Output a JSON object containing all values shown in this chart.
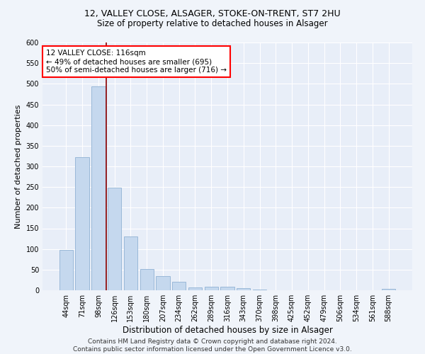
{
  "title_line1": "12, VALLEY CLOSE, ALSAGER, STOKE-ON-TRENT, ST7 2HU",
  "title_line2": "Size of property relative to detached houses in Alsager",
  "xlabel": "Distribution of detached houses by size in Alsager",
  "ylabel": "Number of detached properties",
  "categories": [
    "44sqm",
    "71sqm",
    "98sqm",
    "126sqm",
    "153sqm",
    "180sqm",
    "207sqm",
    "234sqm",
    "262sqm",
    "289sqm",
    "316sqm",
    "343sqm",
    "370sqm",
    "398sqm",
    "425sqm",
    "452sqm",
    "479sqm",
    "506sqm",
    "534sqm",
    "561sqm",
    "588sqm"
  ],
  "values": [
    97,
    323,
    494,
    249,
    131,
    51,
    35,
    20,
    7,
    9,
    9,
    5,
    1,
    0,
    0,
    0,
    0,
    0,
    0,
    0,
    4
  ],
  "bar_color": "#c5d8ee",
  "bar_edge_color": "#9ab8d8",
  "vline_color": "#8b0000",
  "annotation_text": "12 VALLEY CLOSE: 116sqm\n← 49% of detached houses are smaller (695)\n50% of semi-detached houses are larger (716) →",
  "annotation_box_color": "white",
  "annotation_box_edge_color": "red",
  "ylim": [
    0,
    600
  ],
  "yticks": [
    0,
    50,
    100,
    150,
    200,
    250,
    300,
    350,
    400,
    450,
    500,
    550,
    600
  ],
  "footer": "Contains HM Land Registry data © Crown copyright and database right 2024.\nContains public sector information licensed under the Open Government Licence v3.0.",
  "bg_color": "#f0f4fa",
  "plot_bg_color": "#e8eef8",
  "title1_fontsize": 9,
  "title2_fontsize": 8.5,
  "xlabel_fontsize": 8.5,
  "ylabel_fontsize": 8,
  "tick_fontsize": 7,
  "footer_fontsize": 6.5,
  "annot_fontsize": 7.5
}
